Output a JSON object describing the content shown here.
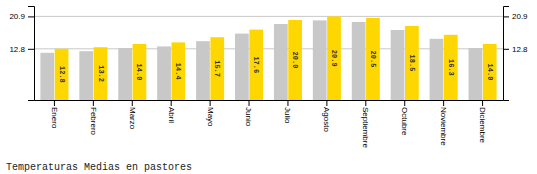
{
  "chart_data": {
    "type": "bar",
    "title": "Temperaturas Medias en pastores",
    "categories": [
      "Enero",
      "Febrero",
      "Marzo",
      "Abril",
      "Mayo",
      "Junio",
      "Julio",
      "Agosto",
      "Septiembre",
      "Octubre",
      "Noviembre",
      "Diciembre"
    ],
    "series": [
      {
        "color": "#C8C8C8",
        "values": [
          11.8,
          12.2,
          13.0,
          13.4,
          14.7,
          16.6,
          19.0,
          19.9,
          19.5,
          17.5,
          15.3,
          13.0
        ]
      },
      {
        "color": "#FFD700",
        "values": [
          12.8,
          13.2,
          14.0,
          14.4,
          15.7,
          17.6,
          20.0,
          20.9,
          20.5,
          18.5,
          16.3,
          14.0
        ],
        "data_labels": true,
        "value_labels": [
          "12.8",
          "13.2",
          "14.0",
          "14.4",
          "15.7",
          "17.6",
          "20.0",
          "20.9",
          "20.5",
          "18.5",
          "16.3",
          "14.0"
        ]
      }
    ],
    "ylim": [
      0,
      23.5
    ],
    "yticks": [
      12.8,
      20.9
    ],
    "y2lim": [
      0,
      23.5
    ],
    "y2ticks": [
      12.8,
      20.9
    ],
    "grid": true
  }
}
